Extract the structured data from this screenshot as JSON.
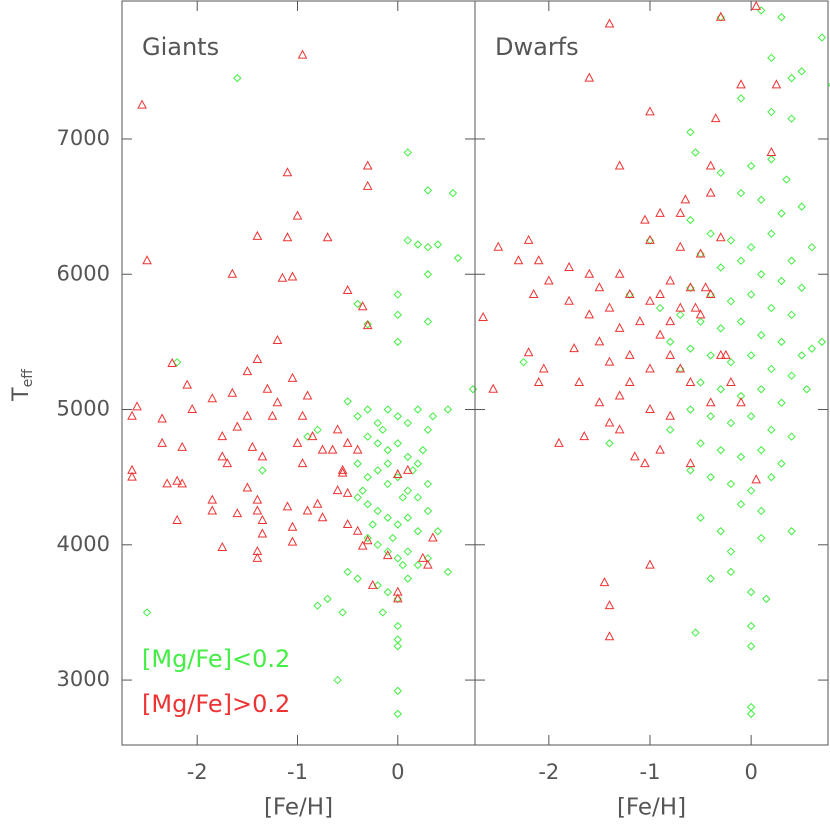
{
  "chart_data": [
    {
      "type": "scatter",
      "title": "Giants",
      "xlabel": "[Fe/H]",
      "ylabel": "T",
      "ylabel_sub": "eff",
      "xlim": [
        -2.75,
        0.77
      ],
      "ylim": [
        2520,
        8020
      ],
      "xticks": [
        -2,
        -1,
        0
      ],
      "yticks": [
        3000,
        4000,
        5000,
        6000,
        7000
      ],
      "ytick_labels": true,
      "legend": "lower left",
      "series": [
        {
          "name": "[Mg/Fe]<0.2",
          "color": "#44ee44",
          "marker": "diamond",
          "x": [
            -1.6,
            -2.2,
            -2.5,
            -0.6,
            0.1,
            0.3,
            0.55,
            0.6,
            0.1,
            0.2,
            0.3,
            0.4,
            0.3,
            0,
            0,
            0.3,
            0,
            0.75,
            -0.4,
            -0.3,
            -0.5,
            -0.4,
            -0.3,
            -0.2,
            -0.1,
            0,
            0.1,
            0.2,
            0.3,
            -0.3,
            -0.2,
            -0.1,
            0,
            0.1,
            0.2,
            -0.4,
            -0.3,
            -0.2,
            -0.1,
            0,
            0.1,
            0.2,
            0.3,
            -0.4,
            -0.3,
            -0.2,
            -0.1,
            0,
            0.1,
            0.2,
            0.3,
            -0.3,
            -0.2,
            -0.1,
            0,
            0.1,
            0.2,
            0.3,
            -0.5,
            -0.4,
            -0.2,
            -0.1,
            0,
            0.1,
            -0.7,
            -0.55,
            0,
            0,
            0,
            0,
            0,
            -0.8,
            0.5,
            -0.1,
            0.05,
            -0.25,
            0.15,
            -0.05,
            0.25,
            -0.15,
            0.35,
            -0.35,
            -1.35,
            -0.9,
            -0.8,
            0.05,
            -0.15,
            0.4,
            0.5
          ],
          "y": [
            7450,
            5350,
            3500,
            3000,
            6900,
            6620,
            6600,
            6120,
            6250,
            6220,
            6200,
            6220,
            6000,
            5850,
            5700,
            5650,
            5500,
            5150,
            5780,
            5630,
            5060,
            4950,
            5000,
            4900,
            5000,
            4950,
            4900,
            5000,
            4850,
            4800,
            4750,
            4700,
            4750,
            4650,
            4600,
            4600,
            4500,
            4550,
            4450,
            4500,
            4400,
            4350,
            4450,
            4350,
            4300,
            4250,
            4200,
            4150,
            4200,
            4100,
            4250,
            4050,
            4000,
            3950,
            3900,
            3950,
            3850,
            3900,
            3800,
            3750,
            3700,
            3650,
            3600,
            3750,
            3600,
            3500,
            3400,
            3300,
            3250,
            2920,
            2750,
            3550,
            3800,
            4600,
            4350,
            4150,
            4550,
            4050,
            4700,
            4850,
            4950,
            4400,
            4550,
            4800,
            4850,
            3850,
            3500,
            4100,
            5000
          ]
        },
        {
          "name": "[Mg/Fe]>0.2",
          "color": "#ee3333",
          "marker": "triangle",
          "x": [
            -2.55,
            -2.5,
            -0.95,
            -1.1,
            -1.4,
            -1.0,
            -1.1,
            -0.7,
            -1.05,
            -1.15,
            -1.65,
            -0.3,
            -0.3,
            -0.5,
            -0.35,
            -0.3,
            -1.2,
            -2.25,
            -1.5,
            -1.05,
            -1.4,
            -2.1,
            -1.65,
            -1.3,
            -1.85,
            -1.2,
            -0.9,
            -2.6,
            -2.05,
            -2.65,
            -1.5,
            -1.25,
            -0.95,
            -2.35,
            -1.6,
            -0.6,
            -0.85,
            -1.75,
            -2.35,
            -2.15,
            -1.45,
            -1.0,
            -0.75,
            -0.65,
            -1.35,
            -1.75,
            -0.4,
            -0.5,
            -2.65,
            -2.65,
            -1.7,
            -0.95,
            -0.55,
            -2.2,
            -2.15,
            -2.3,
            -1.5,
            -0.6,
            -0.5,
            -1.85,
            -1.4,
            -0.8,
            -1.1,
            -1.4,
            -0.9,
            -1.85,
            -1.6,
            -0.75,
            -1.35,
            -2.2,
            -1.05,
            -0.5,
            -0.4,
            -1.35,
            -1.05,
            -0.3,
            -0.35,
            -1.4,
            -1.4,
            -1.75,
            0.25,
            -0.1,
            -0.25,
            0.3,
            0,
            0,
            0.1,
            0,
            -0.55,
            0.35
          ],
          "y": [
            7250,
            6100,
            7620,
            6750,
            6280,
            6430,
            6270,
            6270,
            5980,
            5970,
            6000,
            6800,
            6650,
            5880,
            5760,
            5620,
            5510,
            5340,
            5280,
            5230,
            5370,
            5180,
            5120,
            5150,
            5080,
            5050,
            5100,
            5020,
            5000,
            4950,
            4950,
            4950,
            4950,
            4930,
            4870,
            4850,
            4800,
            4800,
            4750,
            4720,
            4720,
            4750,
            4700,
            4700,
            4650,
            4650,
            4700,
            4750,
            4550,
            4500,
            4600,
            4600,
            4550,
            4470,
            4450,
            4450,
            4420,
            4400,
            4380,
            4330,
            4330,
            4300,
            4280,
            4250,
            4250,
            4250,
            4230,
            4200,
            4180,
            4180,
            4130,
            4150,
            4100,
            4080,
            4020,
            4030,
            3990,
            3950,
            3900,
            3980,
            3900,
            3920,
            3700,
            3850,
            3650,
            3600,
            4550,
            4520,
            4530,
            4050
          ]
        }
      ]
    },
    {
      "type": "scatter",
      "title": "Dwarfs",
      "xlabel": "[Fe/H]",
      "xlim": [
        -2.73,
        0.76
      ],
      "ylim": [
        2520,
        8020
      ],
      "xticks": [
        -2,
        -1,
        0
      ],
      "yticks": [
        3000,
        4000,
        5000,
        6000,
        7000
      ],
      "ytick_labels": false,
      "series": [
        {
          "color": "#44ee44",
          "marker": "diamond",
          "x": [
            -0.3,
            0.1,
            0.2,
            0.3,
            0.4,
            0.5,
            0.7,
            -0.1,
            0.2,
            0.4,
            -0.6,
            -0.55,
            -0.3,
            0.0,
            0.2,
            0.35,
            0.5,
            -0.1,
            0.1,
            0.3,
            -0.6,
            -0.4,
            -0.2,
            0,
            0.2,
            0.4,
            0.6,
            -0.5,
            -0.3,
            -0.1,
            0.1,
            0.3,
            0.5,
            -0.6,
            -0.4,
            -0.2,
            0,
            0.2,
            0.4,
            -0.7,
            -0.5,
            -0.3,
            -0.1,
            0.1,
            0.3,
            0.5,
            -0.8,
            -0.6,
            -0.4,
            -0.2,
            0,
            0.2,
            0.4,
            0.6,
            -0.7,
            -0.5,
            -0.3,
            -0.1,
            0.1,
            0.3,
            -0.6,
            -0.4,
            -0.2,
            0,
            0.2,
            0.4,
            -0.8,
            -0.5,
            -0.3,
            -0.1,
            0.1,
            0.3,
            -0.6,
            -0.4,
            -0.2,
            0,
            0.2,
            -0.1,
            0.1,
            -0.5,
            -0.3,
            0.1,
            -0.2,
            0.4,
            -0.4,
            -0.2,
            0,
            0.15,
            0,
            0,
            -0.55,
            0,
            0,
            -2.25,
            -1.2,
            -0.9,
            -1.4,
            -1.0,
            0.8,
            0.7,
            0.55
          ],
          "y": [
            7900,
            7950,
            7600,
            7900,
            7450,
            7500,
            7750,
            7300,
            7200,
            7150,
            7050,
            6900,
            6750,
            6800,
            6850,
            6700,
            6500,
            6600,
            6550,
            6450,
            6400,
            6300,
            6250,
            6200,
            6300,
            6100,
            6200,
            6150,
            6050,
            6100,
            6000,
            5950,
            5900,
            5900,
            5850,
            5800,
            5850,
            5750,
            5700,
            5700,
            5650,
            5600,
            5650,
            5550,
            5500,
            5400,
            5500,
            5450,
            5400,
            5350,
            5400,
            5300,
            5250,
            5450,
            5300,
            5200,
            5150,
            5100,
            5150,
            5050,
            5000,
            4950,
            4900,
            4950,
            4850,
            4800,
            4850,
            4750,
            4700,
            4650,
            4700,
            4600,
            4550,
            4500,
            4450,
            4400,
            4500,
            4300,
            4250,
            4200,
            4100,
            4050,
            3950,
            4100,
            3750,
            3800,
            3650,
            3600,
            3400,
            3250,
            3350,
            2800,
            2750,
            5350,
            5850,
            5750,
            4750,
            6250,
            7400,
            5500,
            5150
          ]
        },
        {
          "color": "#ee3333",
          "marker": "triangle",
          "x": [
            -1.4,
            -0.3,
            0.05,
            -1.6,
            -0.1,
            0.25,
            -1.0,
            -0.35,
            0.2,
            -1.3,
            -0.4,
            -0.65,
            -0.7,
            -0.9,
            -1.05,
            -0.4,
            -1.0,
            -0.7,
            -2.5,
            -2.2,
            -2.1,
            -2.3,
            -1.8,
            -1.6,
            -1.3,
            -0.8,
            -2.0,
            -1.5,
            -0.6,
            -2.15,
            -1.2,
            -0.9,
            -0.4,
            -1.8,
            -1.0,
            -0.7,
            -1.4,
            -2.65,
            -1.6,
            -0.5,
            -1.1,
            -0.8,
            -1.3,
            -0.9,
            -1.5,
            -1.75,
            -2.2,
            -1.2,
            -0.8,
            -1.4,
            -1.0,
            -0.7,
            -2.05,
            -0.3,
            -1.7,
            -1.2,
            -0.6,
            -2.55,
            -2.1,
            -0.2,
            -1.3,
            -0.4,
            -0.1,
            -1.5,
            -1.0,
            -1.4,
            -0.8,
            -1.3,
            -1.65,
            -1.9,
            -0.9,
            -1.15,
            -0.6,
            0.05,
            -1.05,
            -1.0,
            -1.45,
            -1.4,
            -1.4,
            -0.5,
            -0.45,
            -0.55,
            -0.25,
            -0.3
          ],
          "y": [
            7850,
            7900,
            7980,
            7450,
            7400,
            7400,
            7200,
            7150,
            6900,
            6800,
            6800,
            6550,
            6450,
            6450,
            6400,
            6600,
            6250,
            6200,
            6200,
            6250,
            6100,
            6100,
            6050,
            6000,
            6000,
            5950,
            5950,
            5900,
            5900,
            5850,
            5850,
            5850,
            5850,
            5800,
            5800,
            5750,
            5750,
            5680,
            5700,
            5700,
            5650,
            5650,
            5600,
            5550,
            5500,
            5450,
            5420,
            5400,
            5400,
            5350,
            5300,
            5300,
            5300,
            5400,
            5200,
            5200,
            5200,
            5150,
            5200,
            5200,
            5100,
            5050,
            5050,
            5050,
            5000,
            4900,
            4950,
            4850,
            4800,
            4750,
            4700,
            4650,
            4600,
            4480,
            4600,
            3850,
            3720,
            3550,
            3320,
            6150,
            5900,
            5750,
            5400,
            6270
          ]
        }
      ]
    }
  ]
}
